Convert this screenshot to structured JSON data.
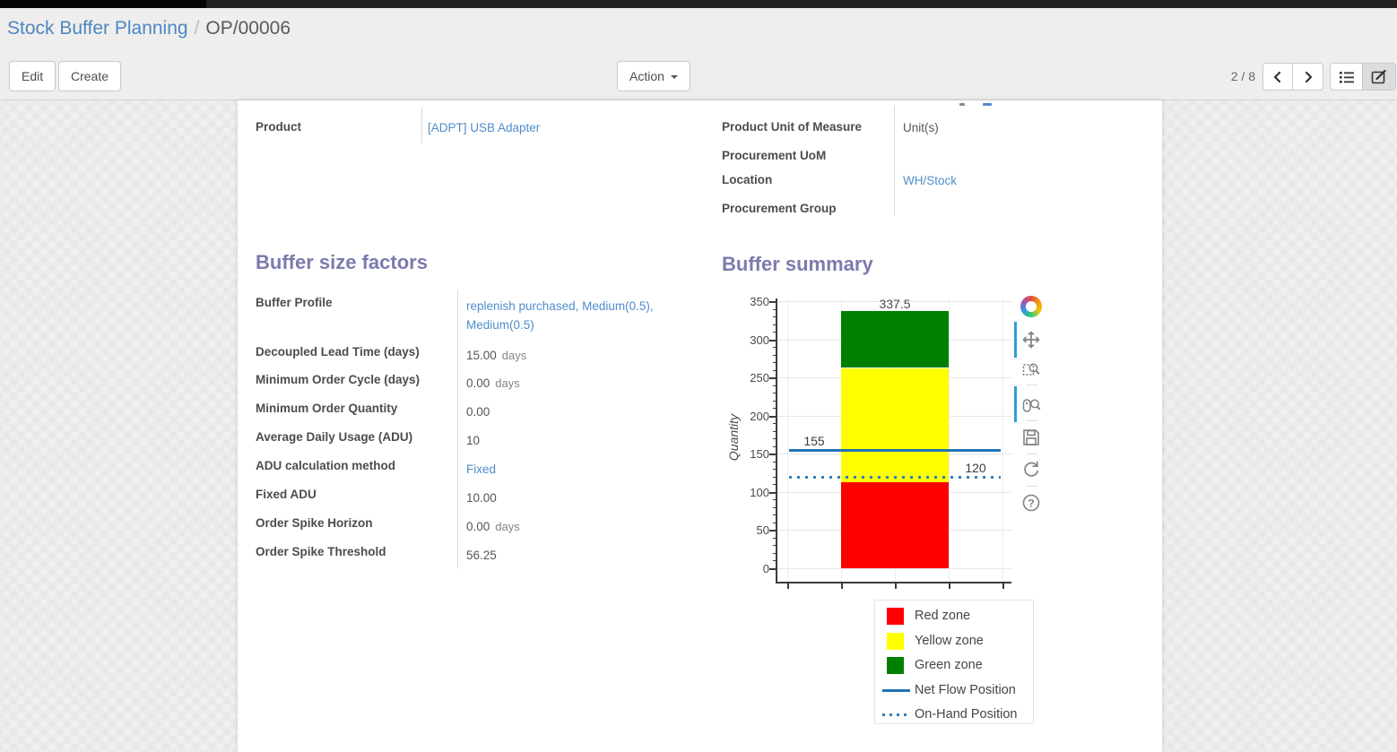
{
  "breadcrumb": {
    "parent": "Stock Buffer Planning",
    "separator": "/",
    "current": "OP/00006"
  },
  "toolbar": {
    "edit_label": "Edit",
    "create_label": "Create",
    "action_label": "Action",
    "pager": "2 / 8"
  },
  "sheet": {
    "product_field": {
      "label": "Product",
      "value": "[ADPT] USB Adapter",
      "link": true
    },
    "right_fields": [
      {
        "label": "Product Unit of Measure",
        "value": "Unit(s)",
        "link": false
      },
      {
        "label": "Procurement UoM",
        "value": "",
        "link": false
      },
      {
        "label": "Location",
        "value": "WH/Stock",
        "link": true
      },
      {
        "label": "Procurement Group",
        "value": "",
        "link": false
      }
    ],
    "factors_title": "Buffer size factors",
    "summary_title": "Buffer summary",
    "factors": [
      {
        "label": "Buffer Profile",
        "value": "replenish purchased, Medium(0.5), Medium(0.5)",
        "unit": "",
        "link": true
      },
      {
        "label": "Decoupled Lead Time (days)",
        "value": "15.00",
        "unit": "days",
        "link": false
      },
      {
        "label": "Minimum Order Cycle (days)",
        "value": "0.00",
        "unit": "days",
        "link": false
      },
      {
        "label": "Minimum Order Quantity",
        "value": "0.00",
        "unit": "",
        "link": false
      },
      {
        "label": "Average Daily Usage (ADU)",
        "value": "10",
        "unit": "",
        "link": false
      },
      {
        "label": "ADU calculation method",
        "value": "Fixed",
        "unit": "",
        "link": true
      },
      {
        "label": "Fixed ADU",
        "value": "10.00",
        "unit": "",
        "link": false
      },
      {
        "label": "Order Spike Horizon",
        "value": "0.00",
        "unit": "days",
        "link": false
      },
      {
        "label": "Order Spike Threshold",
        "value": "56.25",
        "unit": "",
        "link": false
      }
    ]
  },
  "chart_data": {
    "type": "bar",
    "stacked": true,
    "title": "Buffer summary",
    "xlabel": "",
    "ylabel": "Quantity",
    "ylim": [
      0,
      350
    ],
    "yticks": [
      0,
      50,
      100,
      150,
      200,
      250,
      300,
      350
    ],
    "grid": true,
    "zones": [
      {
        "name": "Red zone",
        "from": 0,
        "to": 112.5,
        "color": "#ff0000"
      },
      {
        "name": "Yellow zone",
        "from": 112.5,
        "to": 262.5,
        "color": "#ffff00"
      },
      {
        "name": "Green zone",
        "from": 262.5,
        "to": 337.5,
        "color": "#008000"
      }
    ],
    "lines": [
      {
        "name": "Net Flow Position",
        "value": 155,
        "style": "solid",
        "color": "#2272b4",
        "label_side": "left"
      },
      {
        "name": "On-Hand Position",
        "value": 120,
        "style": "dotted",
        "color": "#2b7fc0",
        "label_side": "right"
      }
    ],
    "bar_labels": [
      "337.5",
      "262.5",
      "112.5"
    ],
    "legend": [
      "Red zone",
      "Yellow zone",
      "Green zone",
      "Net Flow Position",
      "On-Hand Position"
    ],
    "legend_position": "bottom-right"
  },
  "chart_toolbar": {
    "tools": [
      "bokeh-logo",
      "pan",
      "box-zoom",
      "wheel-zoom",
      "save",
      "reset",
      "help"
    ],
    "active": [
      "pan",
      "wheel-zoom"
    ]
  },
  "colors": {
    "heading": "#7c7bad",
    "link": "#4f8dca",
    "net_flow_line": "#2272b4",
    "on_hand_line": "#2b7fc0"
  }
}
